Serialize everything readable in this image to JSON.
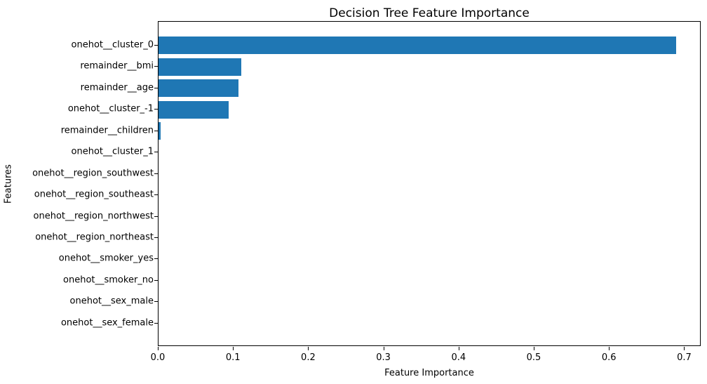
{
  "figure": {
    "background": "#ffffff"
  },
  "chart_data": {
    "type": "bar",
    "orientation": "horizontal",
    "title": "Decision Tree Feature Importance",
    "xlabel": "Feature Importance",
    "ylabel": "Features",
    "categories": [
      "onehot__cluster_0",
      "remainder__bmi",
      "remainder__age",
      "onehot__cluster_-1",
      "remainder__children",
      "onehot__cluster_1",
      "onehot__region_southwest",
      "onehot__region_southeast",
      "onehot__region_northwest",
      "onehot__region_northeast",
      "onehot__smoker_yes",
      "onehot__smoker_no",
      "onehot__sex_male",
      "onehot__sex_female"
    ],
    "values": [
      0.688,
      0.11,
      0.106,
      0.093,
      0.003,
      0,
      0,
      0,
      0,
      0,
      0,
      0,
      0,
      0
    ],
    "xlim": [
      0.0,
      0.722
    ],
    "x_ticks": [
      0.0,
      0.1,
      0.2,
      0.3,
      0.4,
      0.5,
      0.6,
      0.7
    ],
    "x_tick_labels": [
      "0.0",
      "0.1",
      "0.2",
      "0.3",
      "0.4",
      "0.5",
      "0.6",
      "0.7"
    ],
    "bar_color": "#1f77b4",
    "axis_color": "#000000",
    "text_color": "#000000",
    "grid": false,
    "legend": "none"
  }
}
